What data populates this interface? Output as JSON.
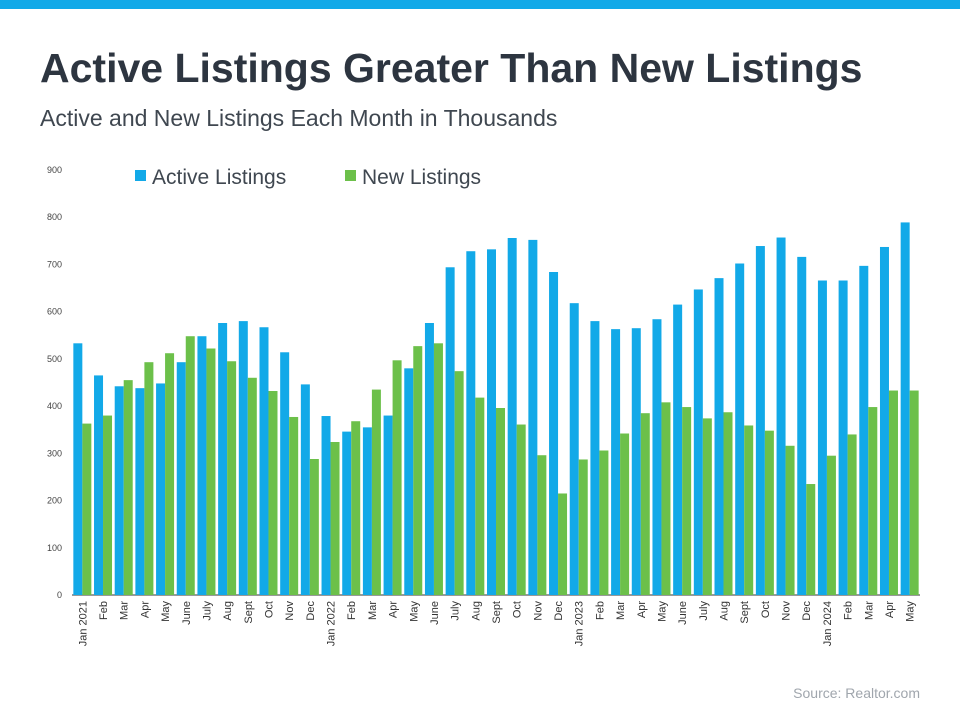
{
  "chart_data": {
    "type": "bar",
    "title": "Active Listings Greater Than New Listings",
    "subtitle": "Active and New Listings Each Month in Thousands",
    "source": "Source: Realtor.com",
    "categories": [
      "Jan 2021",
      "Feb",
      "Mar",
      "Apr",
      "May",
      "June",
      "July",
      "Aug",
      "Sept",
      "Oct",
      "Nov",
      "Dec",
      "Jan 2022",
      "Feb",
      "Mar",
      "Apr",
      "May",
      "June",
      "July",
      "Aug",
      "Sept",
      "Oct",
      "Nov",
      "Dec",
      "Jan 2023",
      "Feb",
      "Mar",
      "Apr",
      "May",
      "June",
      "July",
      "Aug",
      "Sept",
      "Oct",
      "Nov",
      "Dec",
      "Jan 2024",
      "Feb",
      "Mar",
      "Apr",
      "May"
    ],
    "series": [
      {
        "name": "Active Listings",
        "color": "#12a9e8",
        "values": [
          533,
          465,
          442,
          438,
          448,
          493,
          548,
          576,
          580,
          567,
          514,
          446,
          379,
          346,
          355,
          380,
          480,
          576,
          694,
          728,
          732,
          756,
          752,
          684,
          618,
          580,
          563,
          565,
          584,
          615,
          647,
          671,
          702,
          739,
          757,
          716,
          666,
          666,
          697,
          737,
          789
        ]
      },
      {
        "name": "New Listings",
        "color": "#6cc04a",
        "values": [
          363,
          380,
          455,
          493,
          512,
          548,
          522,
          495,
          460,
          432,
          377,
          288,
          324,
          368,
          435,
          497,
          527,
          533,
          474,
          418,
          396,
          361,
          296,
          215,
          287,
          306,
          342,
          385,
          408,
          398,
          374,
          387,
          359,
          348,
          316,
          235,
          295,
          340,
          398,
          433,
          433
        ]
      }
    ],
    "ylim": [
      0,
      900
    ],
    "yticks": [
      0,
      100,
      200,
      300,
      400,
      500,
      600,
      700,
      800,
      900
    ]
  }
}
